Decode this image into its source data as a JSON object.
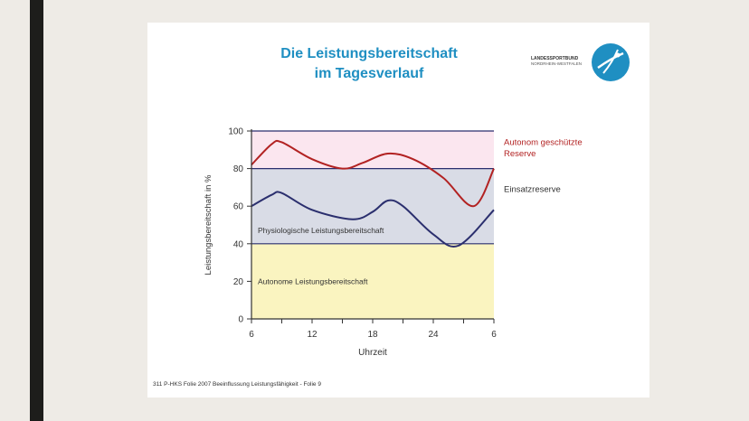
{
  "slide": {
    "title_line1": "Die Leistungsbereitschaft",
    "title_line2": "im Tagesverlauf",
    "logo_line1": "LANDESSPORTBUND",
    "logo_line2": "NORDRHEIN-WESTFALEN",
    "footer": "311 P-HKS Folie 2007 Beeinflussung Leistungsfähigkeit - Folie 9"
  },
  "colors": {
    "accent_title": "#1f8fc2",
    "band_autonome": "#faf4c0",
    "band_physiologische": "#d9dce6",
    "band_reserve": "#fbe6ef",
    "line_red": "#b22222",
    "line_navy": "#2b2f6e"
  },
  "chart_data": {
    "type": "line",
    "xlabel": "Uhrzeit",
    "ylabel": "Leistungsbereitschaft in %",
    "ylim": [
      0,
      100
    ],
    "yticks": [
      0,
      20,
      40,
      60,
      80,
      100
    ],
    "xticks": [
      "6",
      "12",
      "18",
      "24",
      "6"
    ],
    "x_hours": [
      6,
      9,
      12,
      15,
      18,
      21,
      24,
      27,
      30
    ],
    "bands": [
      {
        "label": "Autonome Leistungsbereitschaft",
        "from": 0,
        "to": 40
      },
      {
        "label": "Physiologische Leistungsbereitschaft",
        "from": 40,
        "to": 80
      },
      {
        "label": "Einsatzreserve",
        "from": 60,
        "to": 80
      },
      {
        "label": "Autonom geschützte Reserve",
        "from": 80,
        "to": 100
      }
    ],
    "right_labels": [
      {
        "text": "Autonom geschützte",
        "y": 94
      },
      {
        "text": "Reserve",
        "y": 88
      },
      {
        "text": "Einsatzreserve",
        "y": 69
      }
    ],
    "series": [
      {
        "points": [
          [
            6,
            82
          ],
          [
            8,
            93
          ],
          [
            9,
            94
          ],
          [
            12,
            85
          ],
          [
            15,
            80
          ],
          [
            17,
            83
          ],
          [
            19.5,
            88
          ],
          [
            22,
            85
          ],
          [
            25,
            75
          ],
          [
            28,
            60
          ],
          [
            30,
            80
          ]
        ]
      },
      {
        "points": [
          [
            6,
            60
          ],
          [
            8,
            66
          ],
          [
            9,
            67
          ],
          [
            12,
            58
          ],
          [
            16,
            53
          ],
          [
            18,
            57
          ],
          [
            19.5,
            63
          ],
          [
            21,
            60
          ],
          [
            24,
            45
          ],
          [
            26.5,
            39
          ],
          [
            30,
            58
          ]
        ]
      }
    ]
  }
}
